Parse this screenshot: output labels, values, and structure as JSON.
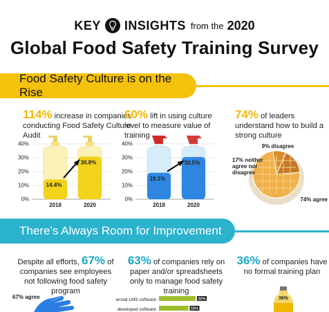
{
  "header": {
    "key": "KEY",
    "insights": "INSIGHTS",
    "from_the": "from the",
    "year": "2020",
    "title": "Global Food Safety Training Survey",
    "bulb_icon": "lightbulb-icon"
  },
  "colors": {
    "yellow": "#f4c20d",
    "blue": "#2bb2cc",
    "dark": "#111111"
  },
  "section1": {
    "title": "Food Safety Culture is on the Rise"
  },
  "section2": {
    "title": "There’s Always Room for Improvement"
  },
  "stat1": {
    "big": "114%",
    "text": " increase in companies conducting Food Safety Culture Audit"
  },
  "stat2": {
    "big": "60%",
    "text": " lift in using culture level to measure value of training"
  },
  "stat3": {
    "big": "74%",
    "text": " of leaders understand how to build a strong culture"
  },
  "stat4": {
    "pre": "Despite all efforts, ",
    "big": "67%",
    "text": " of companies see employees not following food safety program"
  },
  "stat5": {
    "big": "63%",
    "text": " of companies rely on paper and/or spreadsheets only to manage food safety training"
  },
  "stat6": {
    "big": "36%",
    "text": " of companies have no formal training plan"
  },
  "chart_data": [
    {
      "type": "bar",
      "categories": [
        "2018",
        "2020"
      ],
      "values": [
        14.4,
        30.8
      ],
      "value_labels": [
        "14.4%",
        "30.8%"
      ],
      "y_ticks": [
        "0%",
        "10%",
        "20%",
        "30%",
        "40%"
      ],
      "ylim": [
        0,
        40
      ],
      "style": "soap-bottles"
    },
    {
      "type": "bar",
      "categories": [
        "2018",
        "2020"
      ],
      "values": [
        19.1,
        30.5
      ],
      "value_labels": [
        "19.1%",
        "30.5%"
      ],
      "y_ticks": [
        "0%",
        "10%",
        "20%",
        "30%",
        "40%"
      ],
      "ylim": [
        0,
        40
      ],
      "style": "spray-bottles"
    },
    {
      "type": "pie",
      "labels": [
        "disagree",
        "neither agree nor disagree",
        "agree"
      ],
      "values": [
        9,
        17,
        74
      ],
      "slice_labels": [
        "9% disagree",
        "17% neither agree nor disagree",
        "74% agree"
      ],
      "style": "pie-dish"
    },
    {
      "type": "bar",
      "orientation": "horizontal",
      "categories": [
        "Commercial LMS software",
        "Internally developed software"
      ],
      "values": [
        22,
        15
      ],
      "value_labels": [
        "22%",
        "15%"
      ]
    }
  ],
  "bottom": {
    "agree_label": "67% agree",
    "bottle_label": "36%"
  }
}
